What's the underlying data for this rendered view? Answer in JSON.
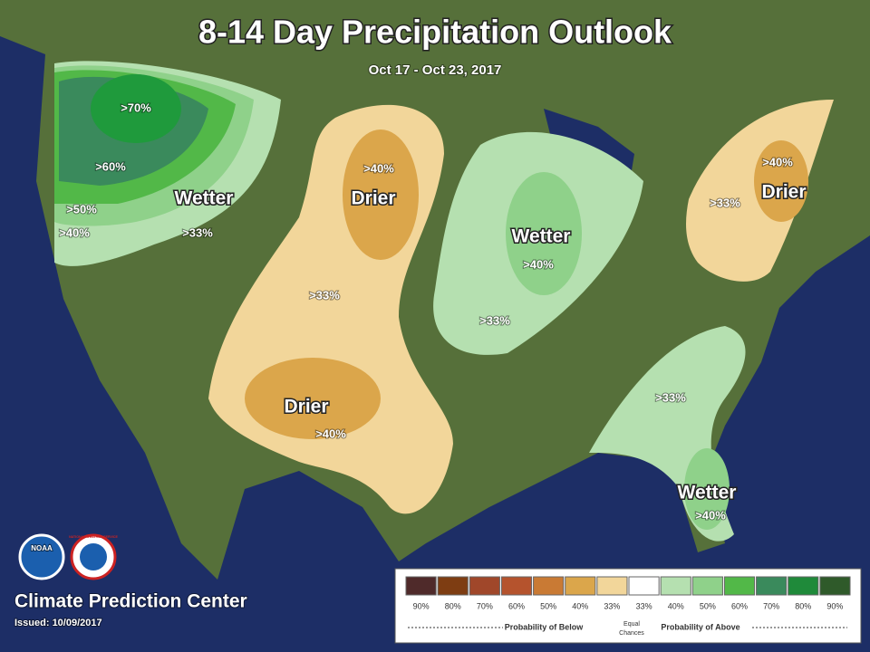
{
  "header": {
    "title": "8-14 Day Precipitation Outlook",
    "subtitle": "Oct 17 - Oct 23, 2017"
  },
  "regions": [
    {
      "category": "Wetter",
      "levels": [
        ">70%",
        ">60%",
        ">50%",
        ">40%",
        ">33%"
      ]
    },
    {
      "category": "Drier",
      "levels": [
        ">40%",
        ">33%"
      ]
    },
    {
      "category": "Drier",
      "levels": [
        ">40%"
      ]
    },
    {
      "category": "Wetter",
      "levels": [
        ">40%",
        ">33%"
      ]
    },
    {
      "category": "Drier",
      "levels": [
        ">40%",
        ">33%"
      ]
    },
    {
      "category": "Wetter",
      "levels": [
        ">33%",
        ">40%"
      ]
    }
  ],
  "footer": {
    "logos": [
      "NOAA",
      "NATIONAL WEATHER SERVICE"
    ],
    "agency": "Climate Prediction Center",
    "issued": "Issued: 10/09/2017"
  },
  "legend": {
    "items": [
      {
        "label": "90%",
        "color": "#4f2a2a"
      },
      {
        "label": "80%",
        "color": "#7e3d12"
      },
      {
        "label": "70%",
        "color": "#a0472a"
      },
      {
        "label": "60%",
        "color": "#b5532d"
      },
      {
        "label": "50%",
        "color": "#c97a34"
      },
      {
        "label": "40%",
        "color": "#dba64b"
      },
      {
        "label": "33%",
        "color": "#f2d69a"
      },
      {
        "label": "33%",
        "color": "#ffffff"
      },
      {
        "label": "40%",
        "color": "#b5e0b0"
      },
      {
        "label": "50%",
        "color": "#8fd18a"
      },
      {
        "label": "60%",
        "color": "#52b848"
      },
      {
        "label": "70%",
        "color": "#3a8a5c"
      },
      {
        "label": "80%",
        "color": "#1f8a3a"
      },
      {
        "label": "90%",
        "color": "#2f5a2a"
      }
    ],
    "below": "Probability of Below",
    "equal_lines": [
      "Equal",
      "Chances"
    ],
    "above": "Probability of Above"
  }
}
